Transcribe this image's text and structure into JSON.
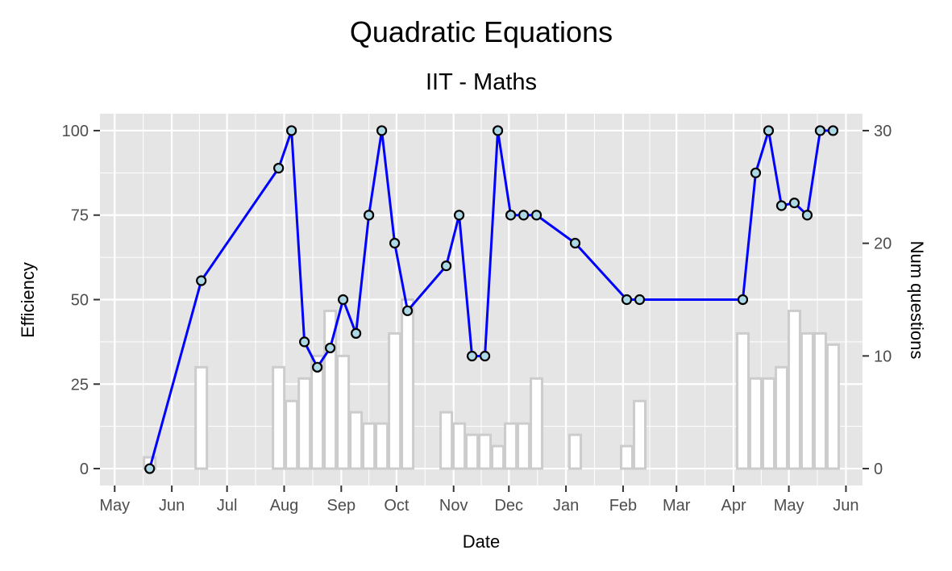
{
  "chart_data": {
    "type": "line",
    "title": "Quadratic Equations",
    "subtitle": "IIT - Maths",
    "xlabel": "Date",
    "ylabel": "Efficiency",
    "y2label": "Num questions",
    "x_ticks": [
      "May",
      "Jun",
      "Jul",
      "Aug",
      "Sep",
      "Oct",
      "Nov",
      "Dec",
      "Jan",
      "Feb",
      "Mar",
      "Apr",
      "May",
      "Jun"
    ],
    "x_tick_dates": [
      "2023-05-01",
      "2023-06-01",
      "2023-07-01",
      "2023-08-01",
      "2023-09-01",
      "2023-10-01",
      "2023-11-01",
      "2023-12-01",
      "2024-01-01",
      "2024-02-01",
      "2024-03-01",
      "2024-04-01",
      "2024-05-01",
      "2024-06-01"
    ],
    "xlim": [
      "2023-04-23",
      "2024-06-10"
    ],
    "y_ticks": [
      0,
      25,
      50,
      75,
      100
    ],
    "ylim": [
      -5,
      105
    ],
    "y2_ticks": [
      0,
      10,
      20,
      30
    ],
    "y2lim": [
      -1.5,
      31.5
    ],
    "grid": true,
    "colors": {
      "panel": "#e5e5e5",
      "grid": "#ffffff",
      "line": "#0000ff",
      "point_fill": "#add8e6",
      "point_stroke": "#000000",
      "bar_fill": "#ffffff",
      "bar_stroke": "#cccccc",
      "tick_label": "#4d4d4d",
      "axis_tick": "#333333"
    },
    "series": [
      {
        "values": [
          {
            "x": "2023-05-20",
            "y": 0
          },
          {
            "x": "2023-06-17",
            "y": 55.6
          },
          {
            "x": "2023-07-29",
            "y": 88.9
          },
          {
            "x": "2023-08-05",
            "y": 100
          },
          {
            "x": "2023-08-12",
            "y": 37.5
          },
          {
            "x": "2023-08-19",
            "y": 30
          },
          {
            "x": "2023-08-26",
            "y": 35.7
          },
          {
            "x": "2023-09-02",
            "y": 50
          },
          {
            "x": "2023-09-09",
            "y": 40
          },
          {
            "x": "2023-09-16",
            "y": 75
          },
          {
            "x": "2023-09-23",
            "y": 100
          },
          {
            "x": "2023-09-30",
            "y": 66.7
          },
          {
            "x": "2023-10-07",
            "y": 46.7
          },
          {
            "x": "2023-10-28",
            "y": 60
          },
          {
            "x": "2023-11-04",
            "y": 75
          },
          {
            "x": "2023-11-11",
            "y": 33.3
          },
          {
            "x": "2023-11-18",
            "y": 33.3
          },
          {
            "x": "2023-11-25",
            "y": 100
          },
          {
            "x": "2023-12-02",
            "y": 75
          },
          {
            "x": "2023-12-09",
            "y": 75
          },
          {
            "x": "2023-12-16",
            "y": 75
          },
          {
            "x": "2024-01-06",
            "y": 66.7
          },
          {
            "x": "2024-02-03",
            "y": 50
          },
          {
            "x": "2024-02-10",
            "y": 50
          },
          {
            "x": "2024-04-06",
            "y": 50
          },
          {
            "x": "2024-04-13",
            "y": 87.5
          },
          {
            "x": "2024-04-20",
            "y": 100
          },
          {
            "x": "2024-04-27",
            "y": 77.8
          },
          {
            "x": "2024-05-04",
            "y": 78.6
          },
          {
            "x": "2024-05-11",
            "y": 75
          },
          {
            "x": "2024-05-18",
            "y": 100
          },
          {
            "x": "2024-05-25",
            "y": 100
          }
        ]
      }
    ],
    "bars": {
      "axis": "secondary",
      "values": [
        {
          "x": "2023-05-20",
          "y": 1
        },
        {
          "x": "2023-06-17",
          "y": 9
        },
        {
          "x": "2023-07-29",
          "y": 9
        },
        {
          "x": "2023-08-05",
          "y": 6
        },
        {
          "x": "2023-08-12",
          "y": 8
        },
        {
          "x": "2023-08-19",
          "y": 10
        },
        {
          "x": "2023-08-26",
          "y": 14
        },
        {
          "x": "2023-09-02",
          "y": 10
        },
        {
          "x": "2023-09-09",
          "y": 5
        },
        {
          "x": "2023-09-16",
          "y": 4
        },
        {
          "x": "2023-09-23",
          "y": 4
        },
        {
          "x": "2023-09-30",
          "y": 12
        },
        {
          "x": "2023-10-07",
          "y": 15
        },
        {
          "x": "2023-10-28",
          "y": 5
        },
        {
          "x": "2023-11-04",
          "y": 4
        },
        {
          "x": "2023-11-11",
          "y": 3
        },
        {
          "x": "2023-11-18",
          "y": 3
        },
        {
          "x": "2023-11-25",
          "y": 2
        },
        {
          "x": "2023-12-02",
          "y": 4
        },
        {
          "x": "2023-12-09",
          "y": 4
        },
        {
          "x": "2023-12-16",
          "y": 8
        },
        {
          "x": "2024-01-06",
          "y": 3
        },
        {
          "x": "2024-02-03",
          "y": 2
        },
        {
          "x": "2024-02-10",
          "y": 6
        },
        {
          "x": "2024-04-06",
          "y": 12
        },
        {
          "x": "2024-04-13",
          "y": 8
        },
        {
          "x": "2024-04-20",
          "y": 8
        },
        {
          "x": "2024-04-27",
          "y": 9
        },
        {
          "x": "2024-05-04",
          "y": 14
        },
        {
          "x": "2024-05-11",
          "y": 12
        },
        {
          "x": "2024-05-18",
          "y": 12
        },
        {
          "x": "2024-05-25",
          "y": 11
        }
      ]
    }
  }
}
